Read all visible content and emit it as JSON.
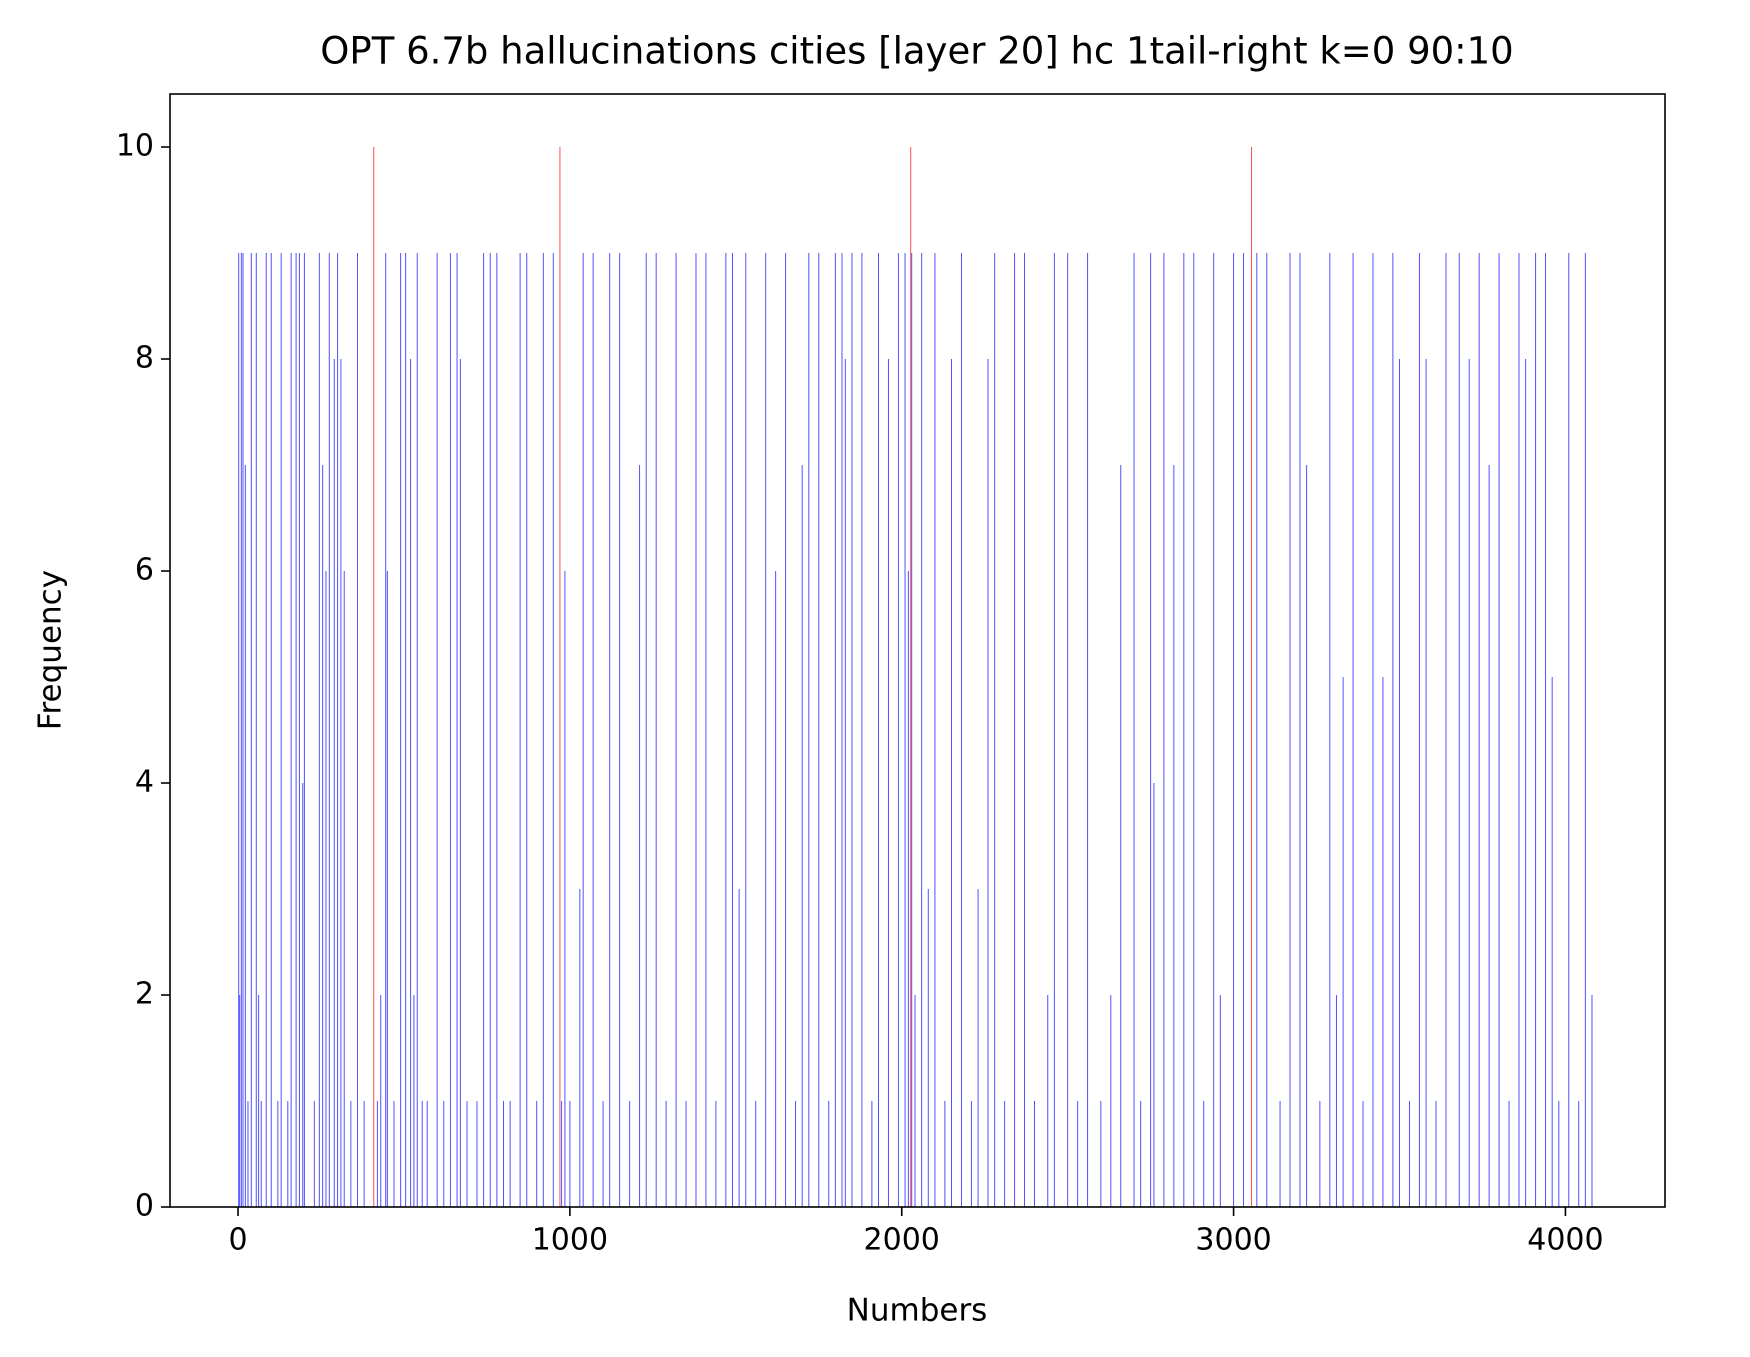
{
  "chart_data": {
    "type": "bar",
    "title": "OPT 6.7b hallucinations cities [layer 20] hc 1tail-right k=0 90:10",
    "x_label": "Numbers",
    "y_label": "Frequency",
    "xlim": [
      -205,
      4300
    ],
    "ylim": [
      0,
      10.5
    ],
    "xticks": [
      0,
      1000,
      2000,
      3000,
      4000
    ],
    "yticks": [
      0,
      2,
      4,
      6,
      8,
      10
    ],
    "grid": false,
    "series": [
      {
        "color": "#3333ff",
        "x": [
          2,
          5,
          10,
          15,
          22,
          30,
          40,
          55,
          62,
          70,
          85,
          100,
          120,
          130,
          150,
          160,
          175,
          185,
          195,
          200,
          230,
          245,
          255,
          265,
          275,
          290,
          300,
          310,
          320,
          340,
          360,
          380,
          420,
          430,
          445,
          450,
          470,
          490,
          505,
          520,
          530,
          540,
          555,
          570,
          600,
          620,
          640,
          660,
          670,
          690,
          720,
          740,
          760,
          780,
          800,
          820,
          850,
          870,
          900,
          920,
          950,
          975,
          985,
          1000,
          1030,
          1040,
          1070,
          1100,
          1120,
          1150,
          1180,
          1210,
          1230,
          1260,
          1290,
          1320,
          1350,
          1380,
          1410,
          1440,
          1470,
          1490,
          1510,
          1530,
          1560,
          1590,
          1620,
          1650,
          1680,
          1700,
          1720,
          1750,
          1780,
          1800,
          1820,
          1830,
          1850,
          1880,
          1910,
          1930,
          1960,
          1990,
          2010,
          2020,
          2030,
          2040,
          2060,
          2080,
          2100,
          2130,
          2150,
          2180,
          2210,
          2230,
          2260,
          2280,
          2310,
          2340,
          2370,
          2400,
          2440,
          2460,
          2500,
          2530,
          2560,
          2600,
          2630,
          2660,
          2700,
          2720,
          2750,
          2760,
          2790,
          2820,
          2850,
          2880,
          2910,
          2940,
          2960,
          3000,
          3030,
          3070,
          3100,
          3140,
          3170,
          3200,
          3220,
          3260,
          3290,
          3310,
          3330,
          3360,
          3390,
          3420,
          3450,
          3480,
          3500,
          3530,
          3560,
          3580,
          3610,
          3640,
          3680,
          3710,
          3740,
          3770,
          3800,
          3830,
          3860,
          3880,
          3910,
          3940,
          3960,
          3980,
          4010,
          4040,
          4060,
          4080
        ],
        "values": [
          9,
          2,
          9,
          9,
          7,
          1,
          9,
          9,
          2,
          1,
          9,
          9,
          1,
          9,
          1,
          9,
          9,
          9,
          4,
          9,
          1,
          9,
          7,
          6,
          9,
          8,
          9,
          8,
          6,
          1,
          9,
          1,
          1,
          2,
          9,
          6,
          1,
          9,
          9,
          8,
          2,
          9,
          1,
          1,
          9,
          1,
          9,
          9,
          8,
          1,
          1,
          9,
          9,
          9,
          1,
          1,
          9,
          9,
          1,
          9,
          9,
          1,
          6,
          1,
          3,
          9,
          9,
          1,
          9,
          9,
          1,
          7,
          9,
          9,
          1,
          9,
          1,
          9,
          9,
          1,
          9,
          9,
          3,
          9,
          1,
          9,
          6,
          9,
          1,
          7,
          9,
          9,
          1,
          9,
          9,
          8,
          9,
          9,
          1,
          9,
          8,
          9,
          9,
          6,
          9,
          2,
          9,
          3,
          9,
          1,
          8,
          9,
          1,
          3,
          8,
          9,
          1,
          9,
          9,
          1,
          2,
          9,
          9,
          1,
          9,
          1,
          2,
          7,
          9,
          1,
          9,
          4,
          9,
          7,
          9,
          9,
          1,
          9,
          2,
          9,
          9,
          9,
          9,
          1,
          9,
          9,
          7,
          1,
          9,
          2,
          5,
          9,
          1,
          9,
          5,
          9,
          8,
          1,
          9,
          8,
          1,
          9,
          9,
          8,
          9,
          7,
          9,
          1,
          9,
          8,
          9,
          9,
          5,
          1,
          9,
          1,
          9,
          2
        ]
      },
      {
        "color": "#ff3333",
        "x": [
          409,
          970,
          2027,
          3054
        ],
        "values": [
          10,
          10,
          10,
          10
        ]
      }
    ]
  }
}
